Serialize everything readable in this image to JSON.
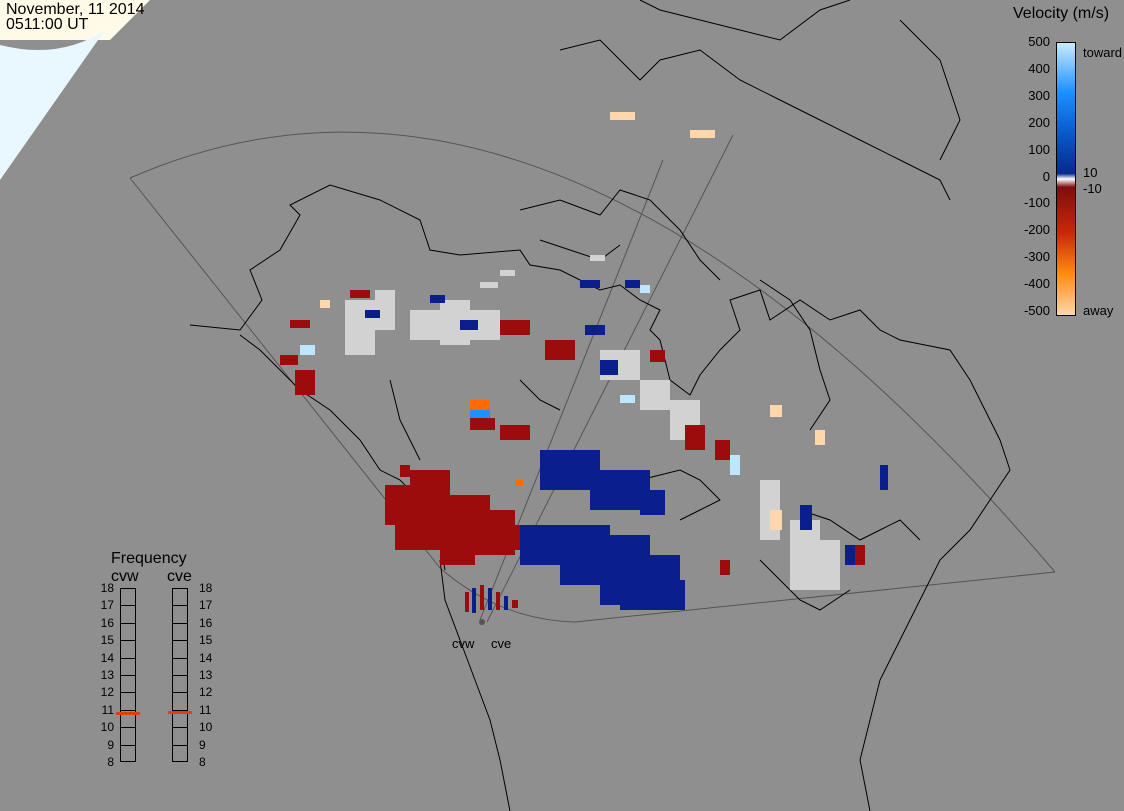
{
  "header": {
    "date": "November, 11 2014",
    "time": "0511:00 UT"
  },
  "velocity_legend": {
    "title": "Velocity (m/s)",
    "ticks": [
      "500",
      "400",
      "300",
      "200",
      "100",
      "0",
      "-100",
      "-200",
      "-300",
      "-400",
      "-500"
    ],
    "right_labels": {
      "top": "toward",
      "plus": "10",
      "minus": "-10",
      "bottom": "away"
    },
    "scale_colors": [
      "#c8ecff",
      "#1e90ff",
      "#0a5ac8",
      "#062a8c",
      "#ffffff",
      "#7c0e0e",
      "#c82a0a",
      "#ff8c14",
      "#ffd7aa"
    ]
  },
  "frequency_legend": {
    "title": "Frequency",
    "left_radar": "cvw",
    "right_radar": "cve",
    "ticks": [
      "18",
      "17",
      "16",
      "15",
      "14",
      "13",
      "12",
      "11",
      "10",
      "9",
      "8"
    ],
    "cvw_freq_mhz": 10.8,
    "cve_freq_mhz": 10.9,
    "marker_color": "#e04010"
  },
  "radar_labels": {
    "west": "cvw",
    "east": "cve"
  },
  "colors": {
    "background": "#8f8f8f",
    "toward_dark": "#0a1e8c",
    "away_dark": "#9c0c0c",
    "ground_scatter": "#d2d2d2",
    "away_light": "#ffd7aa",
    "toward_light": "#bfe6ff"
  }
}
